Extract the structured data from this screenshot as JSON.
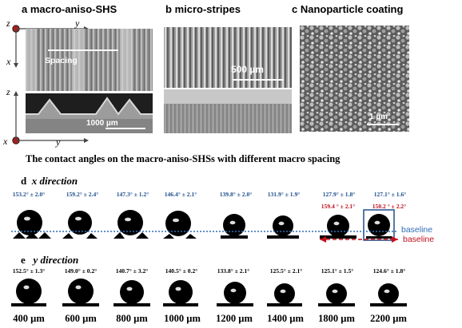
{
  "panels": {
    "a": {
      "letter": "a",
      "title": "macro-aniso-SHS",
      "spacing_label": "Spacing",
      "scale_label": "1000 µm"
    },
    "b": {
      "letter": "b",
      "title": "micro-stripes",
      "scale_label": "500 µm"
    },
    "c": {
      "letter": "c",
      "title": "Nanoparticle coating",
      "scale_label": "1 µm"
    }
  },
  "axes": {
    "top": {
      "v": "z",
      "h": "y",
      "down": "x"
    },
    "bottom": {
      "v": "z",
      "h": "y",
      "origin": "x"
    }
  },
  "section_title": "The contact angles on the macro-aniso-SHSs with different macro spacing",
  "row_d": {
    "letter": "d",
    "direction": "x direction",
    "angles": [
      "153.2° ± 2.0°",
      "159.2° ± 2.4°",
      "147.3° ± 1.2°",
      "146.4° ± 2.1°",
      "139.8° ± 2.0°",
      "131.9° ± 1.9°",
      "127.9° ± 1.8°",
      "127.1° ± 1.6°"
    ],
    "secondary_angles": [
      "159.4 ° ± 2.1°",
      "150.2 ° ± 2.2°"
    ],
    "baseline_blue": "baseline",
    "baseline_red": "baseline"
  },
  "row_e": {
    "letter": "e",
    "direction": "y direction",
    "angles": [
      "152.5° ± 1.3°",
      "149.0° ± 0.2°",
      "140.7° ± 3.2°",
      "140.5° ± 0.2°",
      "133.8° ± 2.1°",
      "125.5° ± 2.1°",
      "125.1° ± 1.5°",
      "124.6° ± 1.8°"
    ]
  },
  "spacings": [
    "400 µm",
    "600 µm",
    "800 µm",
    "1000 µm",
    "1200 µm",
    "1400 µm",
    "1800 µm",
    "2200 µm"
  ],
  "colors": {
    "blue_text": "#1f4e8c",
    "red_text": "#c0101c",
    "baseline_blue": "#2e6db5",
    "baseline_red": "#c0101c"
  }
}
